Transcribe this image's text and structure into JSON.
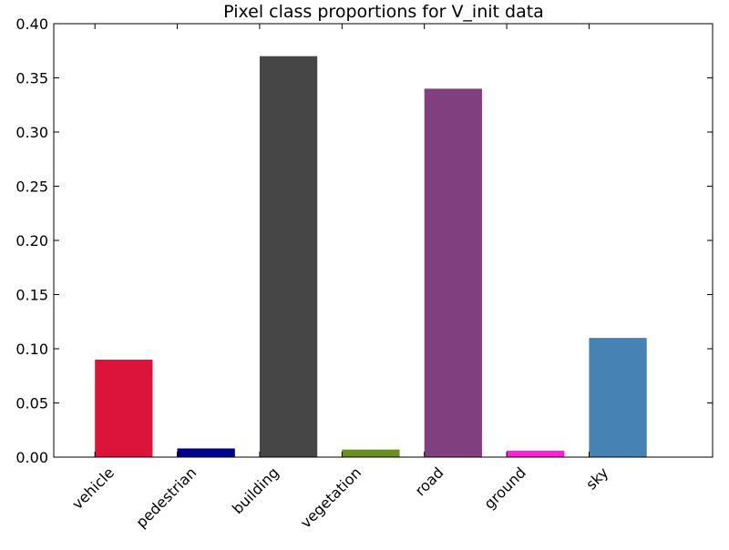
{
  "chart_data": {
    "type": "bar",
    "title": "Pixel class proportions for V_init data",
    "xlabel": "",
    "ylabel": "",
    "categories": [
      "vehicle",
      "pedestrian",
      "building",
      "vegetation",
      "road",
      "ground",
      "sky"
    ],
    "values": [
      0.09,
      0.008,
      0.37,
      0.007,
      0.34,
      0.006,
      0.11
    ],
    "colors": [
      "#dc143c",
      "#00008b",
      "#464646",
      "#6b8e23",
      "#804080",
      "#ff22dd",
      "#4682b4"
    ],
    "ylim": [
      0,
      0.4
    ],
    "yticks": [
      0.0,
      0.05,
      0.1,
      0.15,
      0.2,
      0.25,
      0.3,
      0.35,
      0.4
    ],
    "ytick_labels": [
      "0.00",
      "0.05",
      "0.10",
      "0.15",
      "0.20",
      "0.25",
      "0.30",
      "0.35",
      "0.40"
    ],
    "xlim": [
      -0.5,
      7.5
    ],
    "grid": false,
    "legend": "none"
  }
}
